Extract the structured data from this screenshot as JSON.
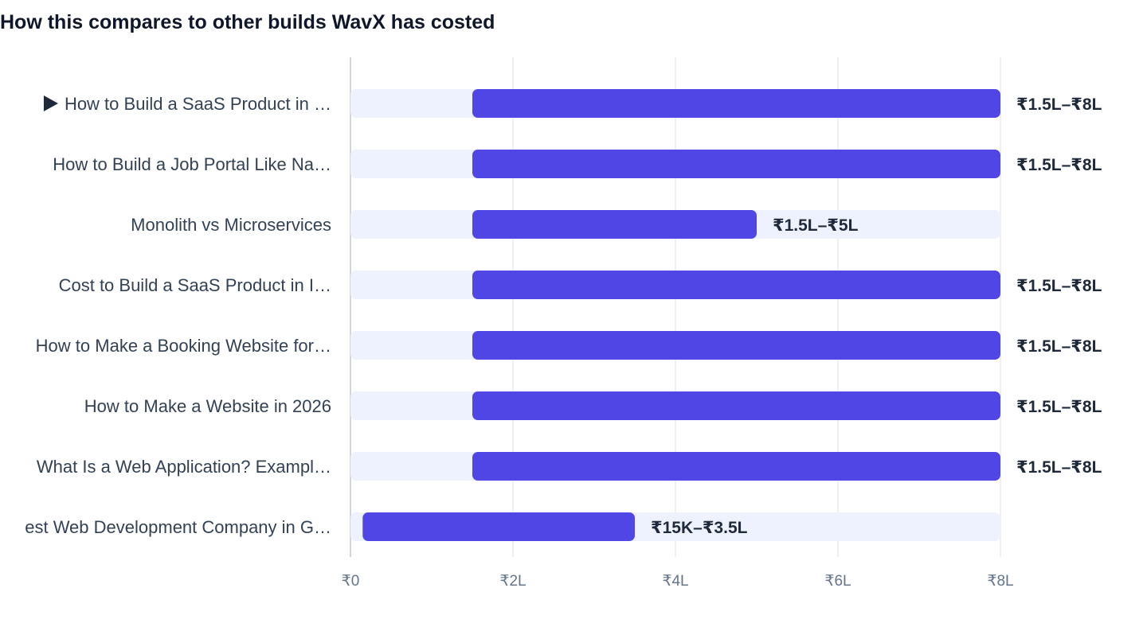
{
  "chart_data": {
    "type": "bar",
    "orientation": "horizontal",
    "title": "How this compares to other builds WavX has costed",
    "categories": [
      "How to Build a SaaS Product in …",
      "How to Build a Job Portal Like Na…",
      "Monolith vs Microservices",
      "Cost to Build a SaaS Product in I…",
      "How to Make a Booking Website for…",
      "How to Make a Website in 2026",
      "What Is a Web Application? Exampl…",
      "est Web Development Company in G…"
    ],
    "current_marker": "▶",
    "current_index": 0,
    "ranges_lakh": [
      [
        1.5,
        8
      ],
      [
        1.5,
        8
      ],
      [
        1.5,
        5
      ],
      [
        1.5,
        8
      ],
      [
        1.5,
        8
      ],
      [
        1.5,
        8
      ],
      [
        1.5,
        8
      ],
      [
        0.15,
        3.5
      ]
    ],
    "range_labels": [
      "₹1.5L–₹8L",
      "₹1.5L–₹8L",
      "₹1.5L–₹5L",
      "₹1.5L–₹8L",
      "₹1.5L–₹8L",
      "₹1.5L–₹8L",
      "₹1.5L–₹8L",
      "₹15K–₹3.5L"
    ],
    "x_ticks": [
      0,
      2,
      4,
      6,
      8
    ],
    "x_tick_labels": [
      "₹0",
      "₹2L",
      "₹4L",
      "₹6L",
      "₹8L"
    ],
    "xlim": [
      0,
      8
    ],
    "xlabel": "",
    "ylabel": "",
    "grid": true,
    "legend": "none",
    "colors": {
      "bar": "#4f46e5",
      "track": "#eef2ff",
      "grid": "#e5e7eb",
      "axis": "#d1d5db",
      "title": "#0f172a",
      "label": "#334155",
      "value_label": "#1e293b",
      "tick": "#64748b"
    }
  }
}
